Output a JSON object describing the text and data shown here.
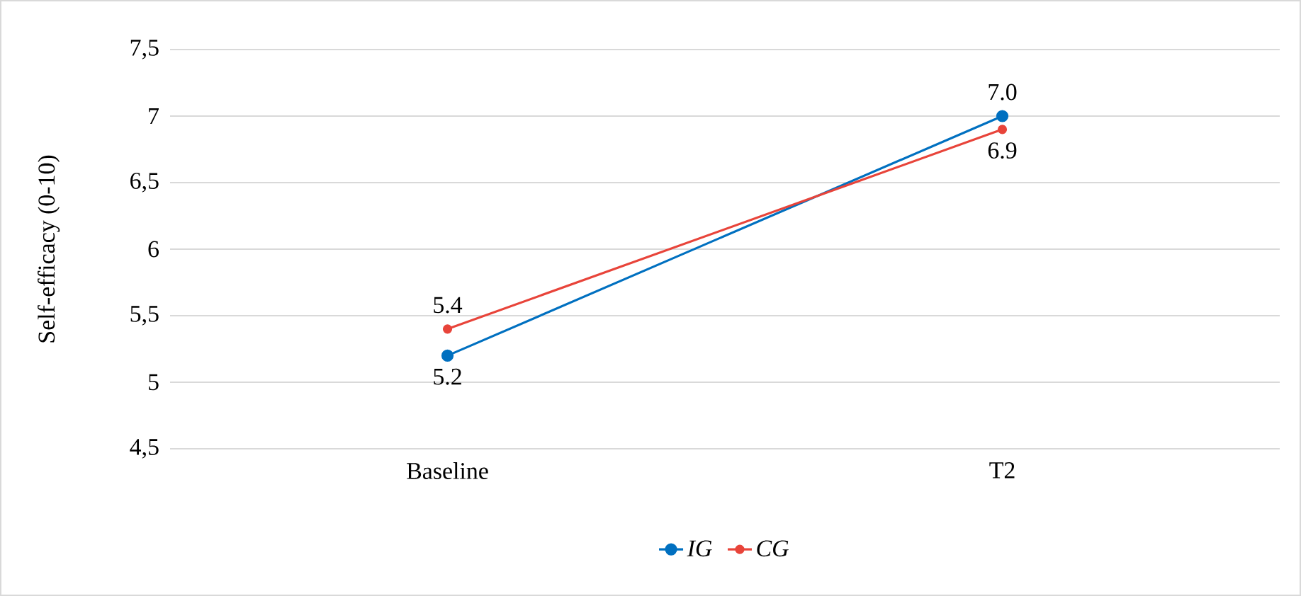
{
  "chart_data": {
    "type": "line",
    "ylabel": "Self-efficacy (0-10)",
    "categories": [
      "Baseline",
      "T2"
    ],
    "series": [
      {
        "name": "IG",
        "color": "#0070c0",
        "values": [
          5.2,
          7.0
        ],
        "value_labels": [
          "5.2",
          "7.0"
        ]
      },
      {
        "name": "CG",
        "color": "#e8443a",
        "values": [
          5.4,
          6.9
        ],
        "value_labels": [
          "5.4",
          "6.9"
        ]
      }
    ],
    "ylim": [
      4.5,
      7.5
    ],
    "yticks": [
      {
        "value": 4.5,
        "label": "4,5"
      },
      5,
      {
        "value": 5.5,
        "label": "5,5"
      },
      6,
      {
        "value": 6.5,
        "label": "6,5"
      },
      7,
      {
        "value": 7.5,
        "label": "7,5"
      }
    ],
    "grid": "y",
    "legend": "bottom",
    "marker": "circle"
  }
}
